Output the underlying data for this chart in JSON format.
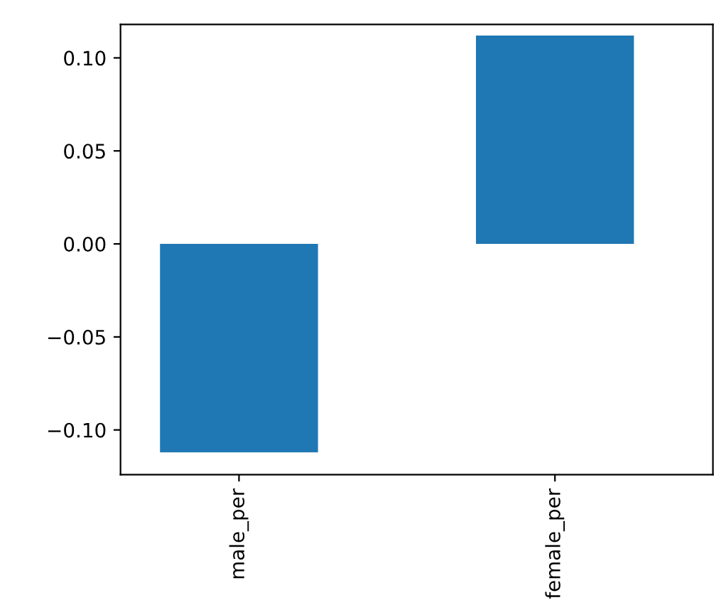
{
  "chart_data": {
    "type": "bar",
    "categories": [
      "male_per",
      "female_per"
    ],
    "values": [
      -0.112,
      0.112
    ],
    "color": "#1f77b4",
    "ylim": [
      -0.124,
      0.118
    ],
    "yticks": [
      {
        "value": -0.1,
        "label": "−0.10"
      },
      {
        "value": -0.05,
        "label": "−0.05"
      },
      {
        "value": 0.0,
        "label": "0.00"
      },
      {
        "value": 0.05,
        "label": "0.05"
      },
      {
        "value": 0.1,
        "label": "0.10"
      }
    ],
    "grid": false,
    "legend": false
  }
}
